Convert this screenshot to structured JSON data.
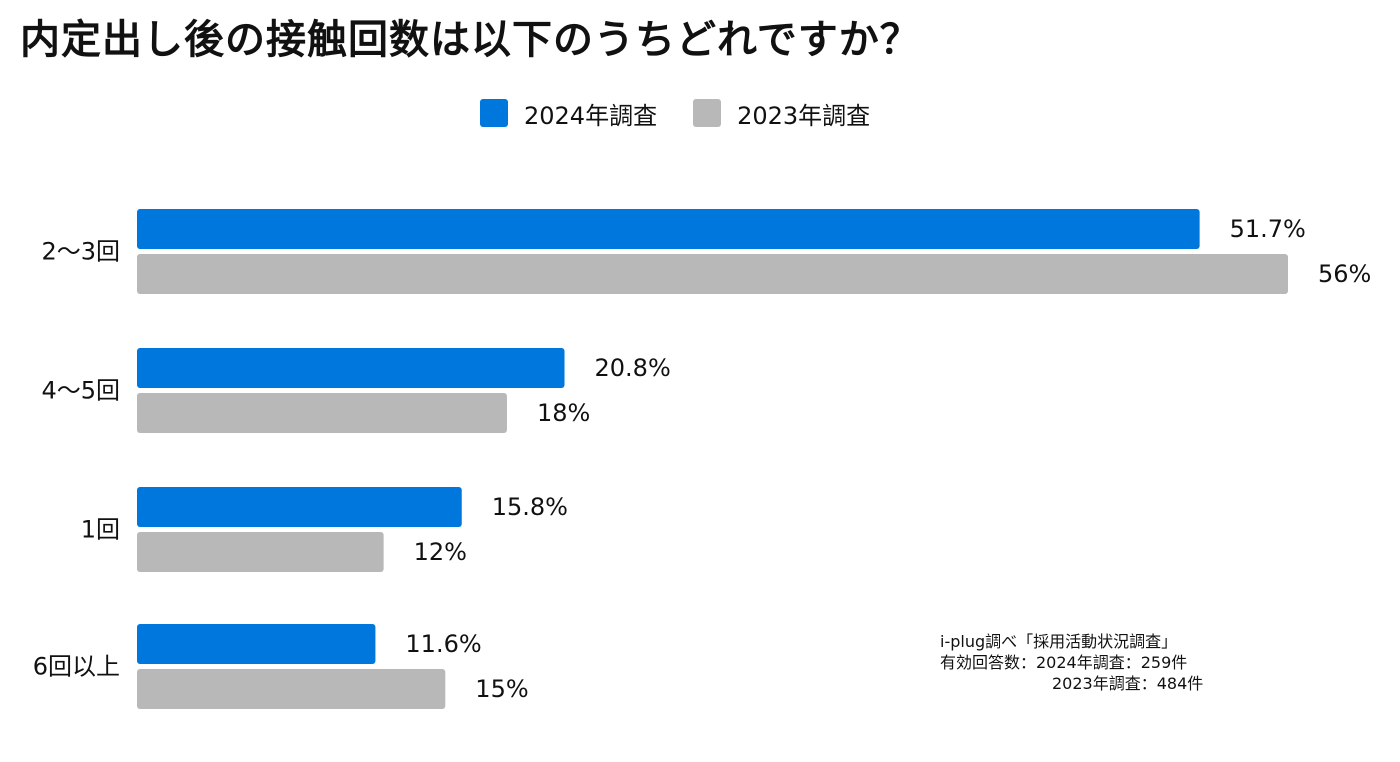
{
  "title": "内定出し後の接触回数は以下のうちどれですか？",
  "legend": [
    {
      "label": "2024年調査",
      "color": "#0077DD"
    },
    {
      "label": "2023年調査",
      "color": "#B8B8B8"
    }
  ],
  "chart_data": {
    "type": "bar",
    "orientation": "horizontal",
    "title": "内定出し後の接触回数は以下のうちどれですか？",
    "categories": [
      "2〜3回",
      "4〜5回",
      "1回",
      "6回以上"
    ],
    "series": [
      {
        "name": "2024年調査",
        "values": [
          51.7,
          20.8,
          15.8,
          11.6
        ],
        "labels": [
          "51.7%",
          "20.8%",
          "15.8%",
          "11.6%"
        ],
        "color": "#0077DD"
      },
      {
        "name": "2023年調査",
        "values": [
          56,
          18,
          12,
          15
        ],
        "labels": [
          "56%",
          "18%",
          "12%",
          "15%"
        ],
        "color": "#B8B8B8"
      }
    ],
    "xlim": [
      0,
      56
    ],
    "xlabel": "",
    "ylabel": "",
    "grid": false,
    "legend_position": "top-center"
  },
  "source": {
    "line1": "i-plug調べ「採用活動状況調査」",
    "line2": "有効回答数：2024年調査：259件",
    "line3": "2023年調査：484件"
  }
}
